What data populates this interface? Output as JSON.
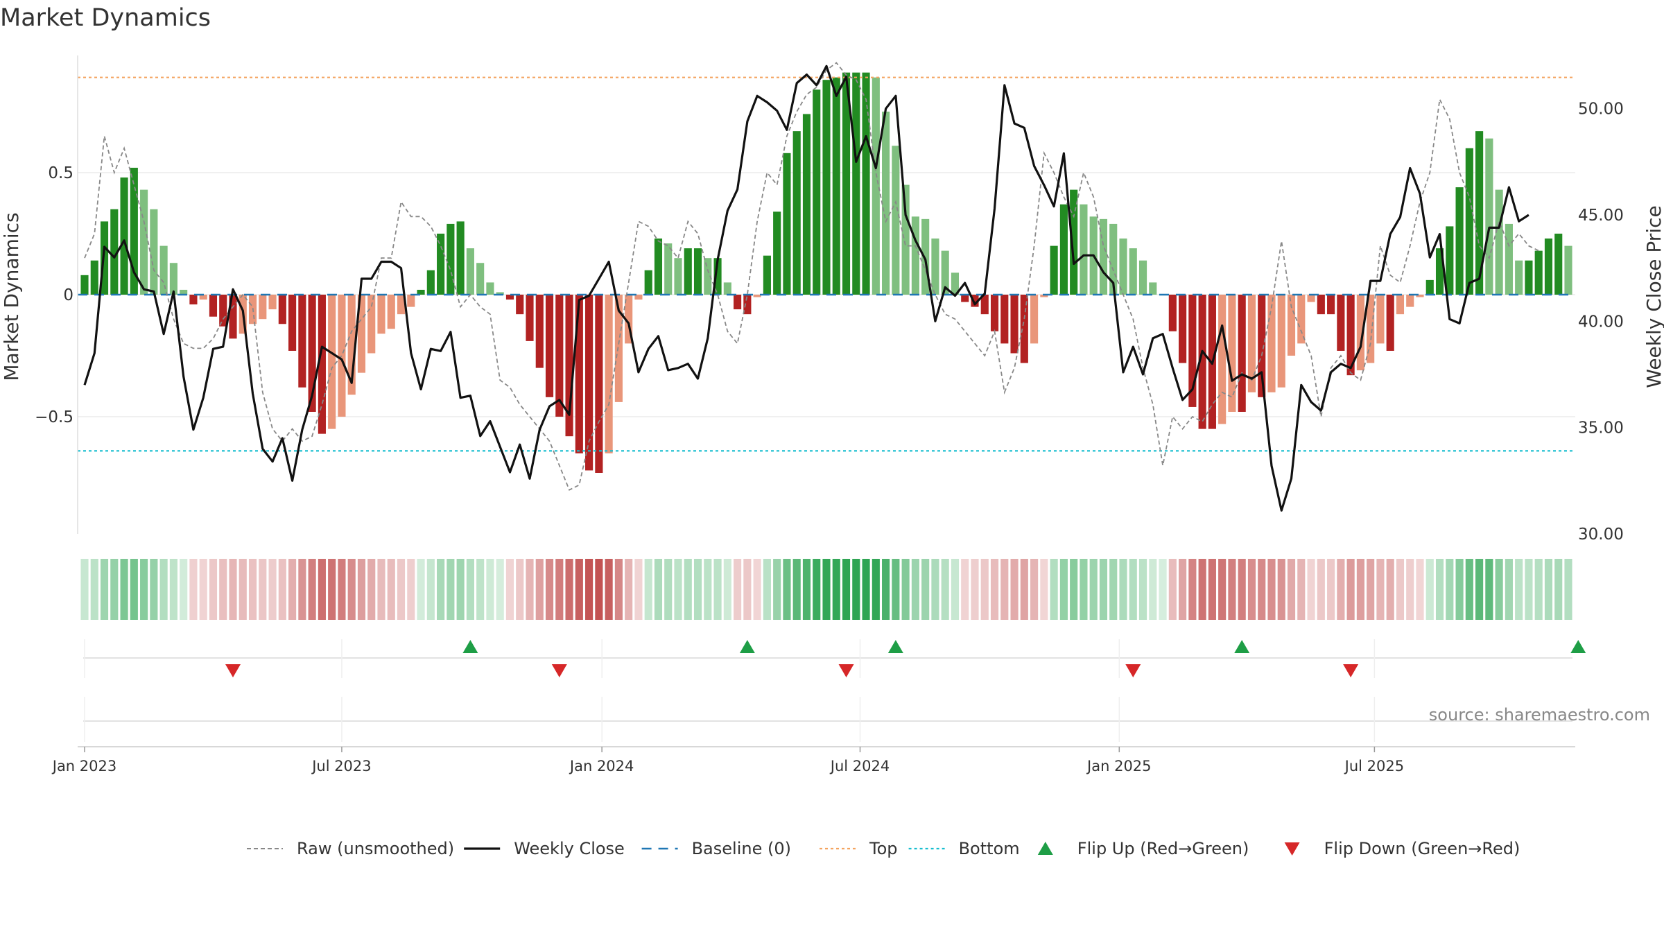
{
  "chart_data": {
    "type": "bar",
    "title": "Market Dynamics",
    "ylabel_left": "Market Dynamics",
    "ylabel_right": "Weekly Close Price",
    "y_left": {
      "lim": [
        -0.98,
        0.98
      ],
      "ticks": [
        0.5,
        0,
        -0.5
      ],
      "tick_labels": [
        "0.5",
        "0",
        "−0.5"
      ]
    },
    "y_right": {
      "lim": [
        30.0,
        52.5
      ],
      "ticks": [
        30,
        35,
        40,
        45,
        50
      ],
      "tick_labels": [
        "30.00",
        "35.00",
        "40.00",
        "45.00",
        "50.00"
      ]
    },
    "x_ticks": [
      {
        "label": "Jan 2023",
        "week": 1
      },
      {
        "label": "Jul 2023",
        "week": 27
      },
      {
        "label": "Jan 2024",
        "week": 53.3
      },
      {
        "label": "Jul 2024",
        "week": 79.4
      },
      {
        "label": "Jan 2025",
        "week": 105.6
      },
      {
        "label": "Jul 2025",
        "week": 131.4
      }
    ],
    "top_line": 0.89,
    "bottom_line": -0.64,
    "baseline": 0,
    "dynamics": [
      0.08,
      0.14,
      0.3,
      0.35,
      0.48,
      0.52,
      0.43,
      0.35,
      0.2,
      0.13,
      0.02,
      -0.04,
      -0.02,
      -0.09,
      -0.13,
      -0.18,
      -0.16,
      -0.12,
      -0.1,
      -0.06,
      -0.12,
      -0.23,
      -0.38,
      -0.48,
      -0.57,
      -0.55,
      -0.5,
      -0.41,
      -0.32,
      -0.24,
      -0.16,
      -0.14,
      -0.08,
      -0.05,
      0.02,
      0.1,
      0.25,
      0.29,
      0.3,
      0.19,
      0.13,
      0.05,
      0.01,
      -0.02,
      -0.08,
      -0.19,
      -0.3,
      -0.42,
      -0.5,
      -0.58,
      -0.65,
      -0.72,
      -0.73,
      -0.65,
      -0.44,
      -0.2,
      -0.02,
      0.1,
      0.23,
      0.21,
      0.15,
      0.19,
      0.19,
      0.15,
      0.15,
      0.05,
      -0.06,
      -0.08,
      -0.01,
      0.16,
      0.34,
      0.58,
      0.67,
      0.74,
      0.84,
      0.88,
      0.89,
      0.91,
      0.91,
      0.91,
      0.89,
      0.75,
      0.61,
      0.45,
      0.32,
      0.31,
      0.23,
      0.18,
      0.09,
      -0.03,
      -0.05,
      -0.08,
      -0.15,
      -0.2,
      -0.24,
      -0.28,
      -0.2,
      -0.01,
      0.2,
      0.37,
      0.43,
      0.37,
      0.32,
      0.31,
      0.29,
      0.23,
      0.19,
      0.14,
      0.05,
      0.0,
      -0.15,
      -0.28,
      -0.46,
      -0.55,
      -0.55,
      -0.53,
      -0.48,
      -0.48,
      -0.4,
      -0.42,
      -0.4,
      -0.38,
      -0.25,
      -0.2,
      -0.03,
      -0.08,
      -0.08,
      -0.23,
      -0.33,
      -0.31,
      -0.28,
      -0.2,
      -0.23,
      -0.08,
      -0.05,
      -0.01,
      0.06,
      0.19,
      0.28,
      0.44,
      0.6,
      0.67,
      0.64,
      0.43,
      0.29,
      0.14,
      0.14,
      0.18,
      0.23,
      0.25,
      0.2
    ],
    "raw_unsmoothed": [
      0.15,
      0.25,
      0.65,
      0.5,
      0.6,
      0.45,
      0.3,
      0.1,
      0.05,
      -0.1,
      -0.2,
      -0.22,
      -0.22,
      -0.18,
      -0.1,
      -0.05,
      0.0,
      -0.05,
      -0.4,
      -0.55,
      -0.6,
      -0.55,
      -0.6,
      -0.58,
      -0.45,
      -0.3,
      -0.25,
      -0.15,
      -0.1,
      -0.05,
      0.15,
      0.15,
      0.38,
      0.32,
      0.32,
      0.28,
      0.2,
      0.1,
      -0.05,
      0.0,
      -0.05,
      -0.08,
      -0.35,
      -0.38,
      -0.45,
      -0.5,
      -0.55,
      -0.6,
      -0.7,
      -0.8,
      -0.78,
      -0.6,
      -0.52,
      -0.45,
      -0.2,
      0.05,
      0.3,
      0.28,
      0.22,
      0.2,
      0.15,
      0.3,
      0.25,
      0.1,
      0.0,
      -0.15,
      -0.2,
      0.0,
      0.3,
      0.5,
      0.45,
      0.65,
      0.75,
      0.82,
      0.85,
      0.92,
      0.95,
      0.9,
      0.88,
      0.8,
      0.5,
      0.3,
      0.38,
      0.2,
      0.2,
      0.1,
      0.0,
      -0.08,
      -0.1,
      -0.15,
      -0.2,
      -0.25,
      -0.15,
      -0.4,
      -0.3,
      -0.1,
      0.2,
      0.58,
      0.5,
      0.4,
      0.32,
      0.5,
      0.4,
      0.2,
      0.1,
      0.0,
      -0.1,
      -0.3,
      -0.45,
      -0.7,
      -0.5,
      -0.55,
      -0.5,
      -0.52,
      -0.45,
      -0.4,
      -0.42,
      -0.32,
      -0.35,
      -0.25,
      -0.05,
      0.22,
      -0.05,
      -0.15,
      -0.25,
      -0.5,
      -0.3,
      -0.25,
      -0.32,
      -0.35,
      -0.2,
      0.2,
      0.08,
      0.05,
      0.2,
      0.38,
      0.5,
      0.8,
      0.72,
      0.5,
      0.4,
      0.2,
      0.15,
      0.3,
      0.2,
      0.25,
      0.2,
      0.18
    ],
    "weekly_close": [
      37.0,
      38.5,
      43.5,
      43.0,
      43.8,
      42.3,
      41.5,
      41.4,
      39.4,
      41.4,
      37.4,
      34.9,
      36.4,
      38.7,
      38.8,
      41.5,
      40.5,
      36.6,
      34.0,
      33.4,
      34.5,
      32.5,
      34.9,
      36.5,
      38.8,
      38.5,
      38.2,
      37.1,
      42.0,
      42.0,
      42.8,
      42.8,
      42.5,
      38.5,
      36.8,
      38.7,
      38.6,
      39.5,
      36.4,
      36.5,
      34.6,
      35.3,
      34.1,
      32.9,
      34.2,
      32.6,
      34.9,
      36.0,
      36.3,
      35.6,
      41.0,
      41.2,
      42.0,
      42.8,
      40.5,
      39.9,
      37.6,
      38.7,
      39.3,
      37.7,
      37.8,
      38.0,
      37.3,
      39.2,
      42.9,
      45.2,
      46.2,
      49.4,
      50.6,
      50.3,
      49.9,
      49.0,
      51.2,
      51.6,
      51.1,
      52.0,
      50.6,
      51.5,
      47.5,
      48.7,
      47.2,
      50.0,
      50.6,
      45.0,
      43.8,
      42.9,
      40.0,
      41.6,
      41.2,
      41.8,
      40.8,
      41.3,
      45.3,
      51.1,
      49.3,
      49.1,
      47.3,
      46.4,
      45.4,
      47.9,
      42.7,
      43.1,
      43.1,
      42.3,
      41.8,
      37.6,
      38.8,
      37.5,
      39.2,
      39.4,
      37.8,
      36.3,
      36.8,
      38.6,
      38.0,
      39.8,
      37.2,
      37.5,
      37.3,
      37.6,
      33.2,
      31.1,
      32.6,
      37.0,
      36.2,
      35.8,
      37.6,
      38.0,
      37.8,
      38.8,
      41.9,
      41.9,
      44.1,
      44.9,
      47.2,
      46.0,
      43.0,
      44.1,
      40.1,
      39.9,
      41.8,
      42.0,
      44.4,
      44.4,
      46.3,
      44.7,
      45.0
    ],
    "flips_up": [
      39,
      67,
      82,
      117,
      151
    ],
    "flips_down": [
      15,
      48,
      77,
      106,
      128
    ],
    "legend": [
      {
        "label": "Raw (unsmoothed)",
        "symbol": "dashed-line"
      },
      {
        "label": "Weekly Close",
        "symbol": "solid-line"
      },
      {
        "label": "Baseline (0)",
        "symbol": "long-dash-line"
      },
      {
        "label": "Top",
        "symbol": "dotted-line"
      },
      {
        "label": "Bottom",
        "symbol": "dotted-line"
      },
      {
        "label": "Flip Up (Red→Green)",
        "symbol": "triangle-up-icon"
      },
      {
        "label": "Flip Down (Green→Red)",
        "symbol": "triangle-down-icon"
      }
    ],
    "colors": {
      "green_strong": "#228b22",
      "green_light": "#7fbf7f",
      "red_strong": "#b22222",
      "red_light": "#e9967a",
      "raw_line": "#888888",
      "close_line": "#111111",
      "baseline": "#1f77b4",
      "top_line": "#f4a460",
      "bottom_line": "#17becf",
      "flip_up": "#1e9e46",
      "flip_down": "#d62728"
    },
    "source": "source: sharemaestro.com"
  }
}
